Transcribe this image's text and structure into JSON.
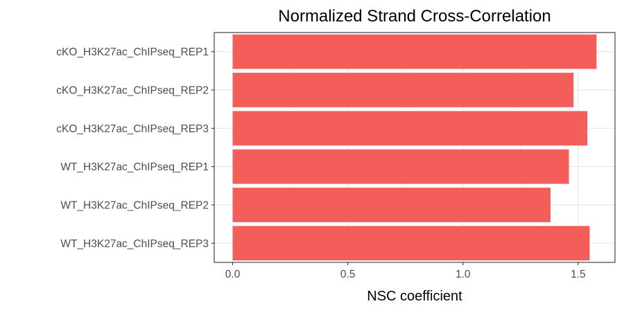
{
  "chart_data": {
    "type": "bar",
    "orientation": "horizontal",
    "title": "Normalized Strand Cross-Correlation",
    "xlabel": "NSC coefficient",
    "ylabel": "",
    "categories": [
      "cKO_H3K27ac_ChIPseq_REP1",
      "cKO_H3K27ac_ChIPseq_REP2",
      "cKO_H3K27ac_ChIPseq_REP3",
      "WT_H3K27ac_ChIPseq_REP1",
      "WT_H3K27ac_ChIPseq_REP2",
      "WT_H3K27ac_ChIPseq_REP3"
    ],
    "values": [
      1.58,
      1.48,
      1.54,
      1.46,
      1.38,
      1.55
    ],
    "xlim": [
      -0.08,
      1.66
    ],
    "xticks": [
      0.0,
      0.5,
      1.0,
      1.5
    ],
    "xtick_labels": [
      "0.0",
      "0.5",
      "1.0",
      "1.5"
    ],
    "grid": true,
    "legend": "none",
    "bar_color": "#f35e5a",
    "panel_border_color": "#333333",
    "grid_color": "#ebebeb"
  }
}
